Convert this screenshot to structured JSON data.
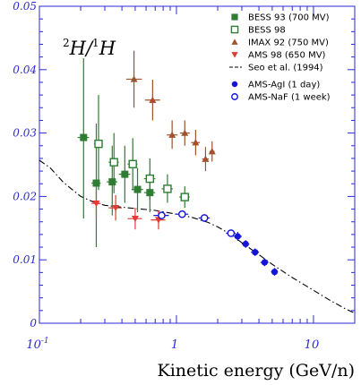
{
  "chart_data": {
    "type": "scatter",
    "title": {
      "num_sup": "2",
      "num": "H",
      "slash": "/",
      "den_sup": "1",
      "den": "H"
    },
    "xlabel": "Kinetic energy (GeV/n)",
    "ylabel": "",
    "x_scale": "log",
    "xlim": [
      0.1,
      20
    ],
    "ylim": [
      0,
      0.05
    ],
    "y_ticks": [
      {
        "value": 0,
        "label": "0"
      },
      {
        "value": 0.01,
        "label": "0.01"
      },
      {
        "value": 0.02,
        "label": "0.02"
      },
      {
        "value": 0.03,
        "label": "0.03"
      },
      {
        "value": 0.04,
        "label": "0.04"
      },
      {
        "value": 0.05,
        "label": "0.05"
      }
    ],
    "x_ticks": [
      {
        "value": 0.1,
        "base": "10",
        "exp": "-1"
      },
      {
        "value": 1,
        "base": "1",
        "exp": ""
      },
      {
        "value": 10,
        "base": "10",
        "exp": ""
      }
    ],
    "legend_position": "top-right",
    "series": [
      {
        "name": "BESS 93 (700 MV)",
        "marker": "square-filled",
        "color": "#2e7d32",
        "points": [
          {
            "x": 0.21,
            "y": 0.0293,
            "xerr": [
              0.19,
              0.23
            ],
            "yerr": [
              0.0165,
              0.0418
            ]
          },
          {
            "x": 0.26,
            "y": 0.0221,
            "xerr": [
              0.24,
              0.28
            ],
            "yerr": [
              0.012,
              0.0315
            ]
          },
          {
            "x": 0.34,
            "y": 0.0223,
            "xerr": [
              0.31,
              0.37
            ],
            "yerr": [
              0.017,
              0.028
            ]
          },
          {
            "x": 0.42,
            "y": 0.0235,
            "xerr": [
              0.38,
              0.46
            ],
            "yerr": [
              0.019,
              0.028
            ]
          },
          {
            "x": 0.52,
            "y": 0.0211,
            "xerr": [
              0.47,
              0.57
            ],
            "yerr": [
              0.0175,
              0.0245
            ]
          },
          {
            "x": 0.64,
            "y": 0.0206,
            "xerr": [
              0.58,
              0.7
            ],
            "yerr": [
              0.0175,
              0.0238
            ]
          }
        ]
      },
      {
        "name": "BESS 98",
        "marker": "square-open",
        "color": "#2e7d32",
        "points": [
          {
            "x": 0.27,
            "y": 0.0283,
            "xerr": [
              0.25,
              0.29
            ],
            "yerr": [
              0.021,
              0.036
            ]
          },
          {
            "x": 0.35,
            "y": 0.0254,
            "xerr": [
              0.32,
              0.38
            ],
            "yerr": [
              0.0205,
              0.03
            ]
          },
          {
            "x": 0.48,
            "y": 0.0251,
            "xerr": [
              0.44,
              0.52
            ],
            "yerr": [
              0.021,
              0.0292
            ]
          },
          {
            "x": 0.64,
            "y": 0.0228,
            "xerr": [
              0.58,
              0.7
            ],
            "yerr": [
              0.0195,
              0.026
            ]
          },
          {
            "x": 0.86,
            "y": 0.0212,
            "xerr": [
              0.78,
              0.94
            ],
            "yerr": [
              0.019,
              0.0235
            ]
          },
          {
            "x": 1.15,
            "y": 0.0199,
            "xerr": [
              1.05,
              1.25
            ],
            "yerr": [
              0.0182,
              0.0216
            ]
          }
        ]
      },
      {
        "name": "IMAX 92 (750 MV)",
        "marker": "triangle-up",
        "color": "#a0522d",
        "points": [
          {
            "x": 0.49,
            "y": 0.0385,
            "xerr": [
              0.43,
              0.56
            ],
            "yerr": [
              0.034,
              0.043
            ]
          },
          {
            "x": 0.67,
            "y": 0.0352,
            "xerr": [
              0.59,
              0.76
            ],
            "yerr": [
              0.032,
              0.0384
            ]
          },
          {
            "x": 0.93,
            "y": 0.0297,
            "xerr": [
              0.85,
              1.02
            ],
            "yerr": [
              0.0275,
              0.032
            ]
          },
          {
            "x": 1.15,
            "y": 0.03,
            "xerr": [
              1.06,
              1.25
            ],
            "yerr": [
              0.028,
              0.032
            ]
          },
          {
            "x": 1.38,
            "y": 0.0285,
            "xerr": [
              1.28,
              1.48
            ],
            "yerr": [
              0.0265,
              0.0305
            ]
          },
          {
            "x": 1.63,
            "y": 0.0259,
            "xerr": [
              1.54,
              1.72
            ],
            "yerr": [
              0.024,
              0.0278
            ]
          },
          {
            "x": 1.82,
            "y": 0.0271,
            "xerr": [
              1.74,
              1.9
            ],
            "yerr": [
              0.0255,
              0.0287
            ]
          }
        ]
      },
      {
        "name": "AMS 98 (650 MV)",
        "marker": "triangle-down",
        "color": "#e53935",
        "points": [
          {
            "x": 0.26,
            "y": 0.0189,
            "xerr": [
              0.24,
              0.28
            ],
            "yerr": [
              0.0165,
              0.0213
            ]
          },
          {
            "x": 0.36,
            "y": 0.0182,
            "xerr": [
              0.32,
              0.4
            ],
            "yerr": [
              0.0162,
              0.0202
            ]
          },
          {
            "x": 0.5,
            "y": 0.0165,
            "xerr": [
              0.44,
              0.56
            ],
            "yerr": [
              0.0148,
              0.0182
            ]
          },
          {
            "x": 0.74,
            "y": 0.0163,
            "xerr": [
              0.65,
              0.83
            ],
            "yerr": [
              0.0148,
              0.0178
            ]
          }
        ]
      },
      {
        "name": "AMS-AgI (1 day)",
        "marker": "circle-filled",
        "color": "#1515d6",
        "points": [
          {
            "x": 2.8,
            "y": 0.0137,
            "xerr": [
              2.6,
              3.0
            ],
            "yerr": [
              0.013,
              0.0144
            ]
          },
          {
            "x": 3.2,
            "y": 0.0125,
            "xerr": [
              3.0,
              3.4
            ],
            "yerr": [
              0.0119,
              0.0131
            ]
          },
          {
            "x": 3.75,
            "y": 0.0112,
            "xerr": [
              3.5,
              4.0
            ],
            "yerr": [
              0.0106,
              0.0118
            ]
          },
          {
            "x": 4.4,
            "y": 0.0096,
            "xerr": [
              4.1,
              4.7
            ],
            "yerr": [
              0.009,
              0.0102
            ]
          },
          {
            "x": 5.2,
            "y": 0.0081,
            "xerr": [
              4.9,
              5.5
            ],
            "yerr": [
              0.0075,
              0.0087
            ]
          }
        ]
      },
      {
        "name": "AMS-NaF (1 week)",
        "marker": "circle-open",
        "color": "#1515d6",
        "points": [
          {
            "x": 0.78,
            "y": 0.017,
            "xerr": [
              0.68,
              0.88
            ],
            "yerr": [
              0.0164,
              0.0176
            ]
          },
          {
            "x": 1.1,
            "y": 0.0172,
            "xerr": [
              0.98,
              1.22
            ],
            "yerr": [
              0.0167,
              0.0177
            ]
          },
          {
            "x": 1.6,
            "y": 0.0166,
            "xerr": [
              1.45,
              1.75
            ],
            "yerr": [
              0.0161,
              0.0171
            ]
          },
          {
            "x": 2.5,
            "y": 0.0142,
            "xerr": [
              2.3,
              2.7
            ],
            "yerr": [
              0.0137,
              0.0147
            ]
          }
        ]
      }
    ],
    "curve": {
      "name": "Seo et al. (1994)",
      "style": "dash-dot",
      "color": "#000000",
      "x": [
        0.1,
        0.12,
        0.15,
        0.2,
        0.25,
        0.3,
        0.4,
        0.5,
        0.7,
        1.0,
        1.3,
        1.7,
        2.0,
        2.5,
        3.0,
        4.0,
        5.0,
        7.0,
        10.0,
        13.0,
        17.0,
        20.0
      ],
      "y": [
        0.0257,
        0.0245,
        0.0222,
        0.02,
        0.0191,
        0.0186,
        0.0183,
        0.0181,
        0.0178,
        0.0172,
        0.0167,
        0.0159,
        0.0152,
        0.014,
        0.0127,
        0.0108,
        0.0093,
        0.0072,
        0.0052,
        0.0037,
        0.0023,
        0.0016
      ]
    }
  }
}
